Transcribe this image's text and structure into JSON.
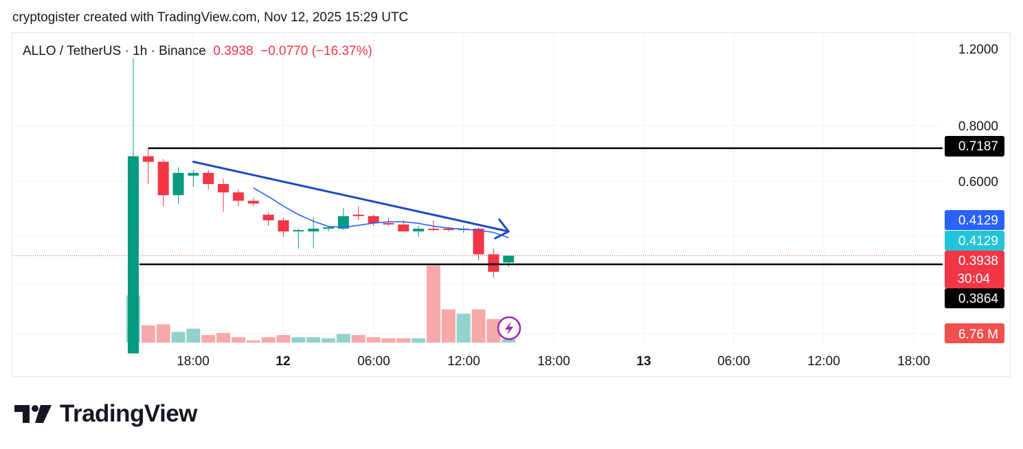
{
  "header": {
    "text": "cryptogister created with TradingView.com, Nov 12, 2025 15:29 UTC"
  },
  "legend": {
    "symbol": "ALLO / TetherUS · 1h · Binance",
    "last": "0.3938",
    "change": "−0.0770 (−16.37%)"
  },
  "brand": {
    "name": "TradingView"
  },
  "colors": {
    "up": "#089981",
    "down": "#f23645",
    "vol_up": "#92d2cc",
    "vol_down": "#f7a9a7",
    "trend": "#1e4bc4",
    "ma": "#2962ff",
    "level": "#000000"
  },
  "chart_data": {
    "type": "candlestick",
    "timeframe": "1h",
    "x_ticks": [
      "18:00",
      "12",
      "06:00",
      "12:00",
      "18:00",
      "13",
      "06:00",
      "12:00",
      "18:00"
    ],
    "y_ticks": [
      "1.2000",
      "0.8000",
      "0.6000"
    ],
    "ylim": [
      0.3,
      1.2
    ],
    "price_labels": [
      {
        "text": "0.7187",
        "value": 0.7187,
        "bg": "#000000"
      },
      {
        "text": "0.4129",
        "value": 0.4129,
        "bg": "#2962ff"
      },
      {
        "text": "0.4129",
        "value": 0.4129,
        "bg": "#22c5d8"
      },
      {
        "text": "0.3938",
        "value": 0.3938,
        "bg": "#f23645",
        "sub": "30:04"
      },
      {
        "text": "0.3864",
        "value": 0.3864,
        "bg": "#000000"
      }
    ],
    "volume_label": {
      "text": "6.76 M",
      "bg": "#f0504d"
    },
    "horizontal_levels": [
      0.7187,
      0.3864
    ],
    "trendline": {
      "from": {
        "bar": 4,
        "price": 0.67
      },
      "to": {
        "bar": 25,
        "price": 0.42
      }
    },
    "candles": [
      {
        "o": 0.31,
        "h": 1.15,
        "l": 0.31,
        "c": 0.69,
        "v": 4.4
      },
      {
        "o": 0.69,
        "h": 0.72,
        "l": 0.59,
        "c": 0.67,
        "v": 1.6
      },
      {
        "o": 0.67,
        "h": 0.68,
        "l": 0.51,
        "c": 0.55,
        "v": 1.7
      },
      {
        "o": 0.55,
        "h": 0.65,
        "l": 0.52,
        "c": 0.63,
        "v": 1.0
      },
      {
        "o": 0.62,
        "h": 0.64,
        "l": 0.58,
        "c": 0.63,
        "v": 1.3
      },
      {
        "o": 0.63,
        "h": 0.64,
        "l": 0.57,
        "c": 0.59,
        "v": 0.7
      },
      {
        "o": 0.59,
        "h": 0.61,
        "l": 0.49,
        "c": 0.56,
        "v": 0.9
      },
      {
        "o": 0.56,
        "h": 0.57,
        "l": 0.51,
        "c": 0.53,
        "v": 0.5
      },
      {
        "o": 0.53,
        "h": 0.54,
        "l": 0.51,
        "c": 0.52,
        "v": 0.2
      },
      {
        "o": 0.48,
        "h": 0.49,
        "l": 0.44,
        "c": 0.46,
        "v": 0.5
      },
      {
        "o": 0.46,
        "h": 0.47,
        "l": 0.41,
        "c": 0.42,
        "v": 0.7
      },
      {
        "o": 0.42,
        "h": 0.43,
        "l": 0.4,
        "c": 0.425,
        "v": 0.5
      },
      {
        "o": 0.42,
        "h": 0.47,
        "l": 0.4,
        "c": 0.43,
        "v": 0.5
      },
      {
        "o": 0.43,
        "h": 0.44,
        "l": 0.42,
        "c": 0.435,
        "v": 0.4
      },
      {
        "o": 0.43,
        "h": 0.505,
        "l": 0.425,
        "c": 0.475,
        "v": 0.8
      },
      {
        "o": 0.48,
        "h": 0.51,
        "l": 0.46,
        "c": 0.475,
        "v": 0.7
      },
      {
        "o": 0.475,
        "h": 0.48,
        "l": 0.44,
        "c": 0.45,
        "v": 0.5
      },
      {
        "o": 0.45,
        "h": 0.47,
        "l": 0.44,
        "c": 0.445,
        "v": 0.4
      },
      {
        "o": 0.445,
        "h": 0.46,
        "l": 0.42,
        "c": 0.42,
        "v": 0.4
      },
      {
        "o": 0.42,
        "h": 0.44,
        "l": 0.41,
        "c": 0.43,
        "v": 0.4
      },
      {
        "o": 0.43,
        "h": 0.46,
        "l": 0.42,
        "c": 0.425,
        "v": 7.2
      },
      {
        "o": 0.43,
        "h": 0.435,
        "l": 0.42,
        "c": 0.425,
        "v": 3.1
      },
      {
        "o": 0.425,
        "h": 0.44,
        "l": 0.415,
        "c": 0.43,
        "v": 2.7
      },
      {
        "o": 0.43,
        "h": 0.435,
        "l": 0.39,
        "c": 0.395,
        "v": 3.1
      },
      {
        "o": 0.395,
        "h": 0.4,
        "l": 0.375,
        "c": 0.38,
        "v": 2.2
      },
      {
        "o": 0.388,
        "h": 0.392,
        "l": 0.384,
        "c": 0.3938,
        "v": 0.3
      }
    ]
  }
}
